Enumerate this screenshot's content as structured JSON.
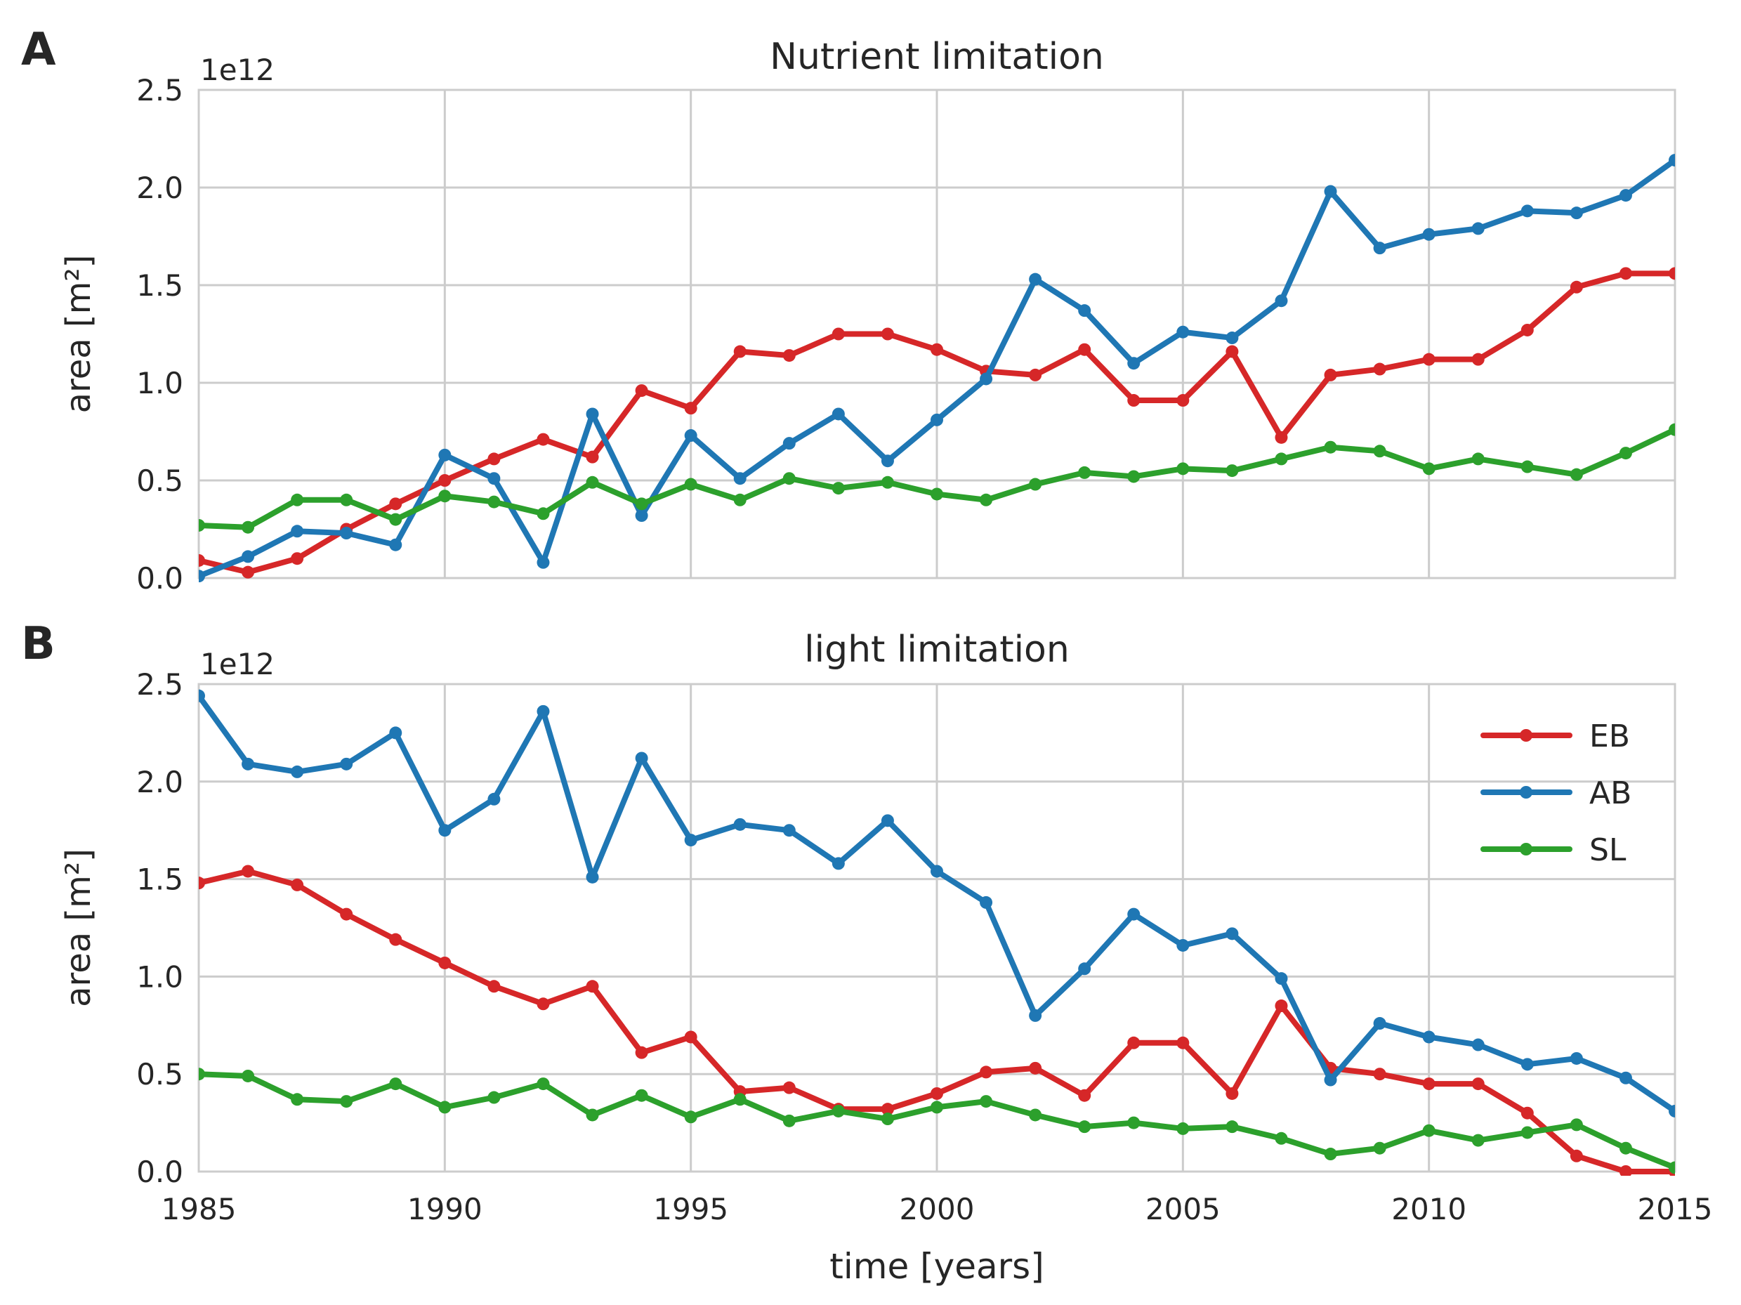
{
  "chart_data": [
    {
      "type": "line",
      "panel_label": "A",
      "title": "Nutrient limitation",
      "xlabel": "",
      "ylabel": "area [m²]",
      "offset_text": "1e12",
      "xlim": [
        1985,
        2015
      ],
      "ylim": [
        0.0,
        2.5
      ],
      "y_scale_factor": 1000000000000.0,
      "yticks": [
        "0.0",
        "0.5",
        "1.0",
        "1.5",
        "2.0",
        "2.5"
      ],
      "grid": true,
      "x": [
        1985,
        1986,
        1987,
        1988,
        1989,
        1990,
        1991,
        1992,
        1993,
        1994,
        1995,
        1996,
        1997,
        1998,
        1999,
        2000,
        2001,
        2002,
        2003,
        2004,
        2005,
        2006,
        2007,
        2008,
        2009,
        2010,
        2011,
        2012,
        2013,
        2014,
        2015
      ],
      "series": [
        {
          "name": "EB",
          "color": "#d62728",
          "values": [
            0.09,
            0.03,
            0.1,
            0.25,
            0.38,
            0.5,
            0.61,
            0.71,
            0.62,
            0.96,
            0.87,
            1.16,
            1.14,
            1.25,
            1.25,
            1.17,
            1.06,
            1.04,
            1.17,
            0.91,
            0.91,
            1.16,
            0.72,
            1.04,
            1.07,
            1.12,
            1.12,
            1.27,
            1.49,
            1.56,
            1.56
          ]
        },
        {
          "name": "AB",
          "color": "#1f77b4",
          "values": [
            0.01,
            0.11,
            0.24,
            0.23,
            0.17,
            0.63,
            0.51,
            0.08,
            0.84,
            0.32,
            0.73,
            0.51,
            0.69,
            0.84,
            0.6,
            0.81,
            1.02,
            1.53,
            1.37,
            1.1,
            1.26,
            1.23,
            1.42,
            1.98,
            1.69,
            1.76,
            1.79,
            1.88,
            1.87,
            1.96,
            2.14
          ]
        },
        {
          "name": "SL",
          "color": "#2ca02c",
          "values": [
            0.27,
            0.26,
            0.4,
            0.4,
            0.3,
            0.42,
            0.39,
            0.33,
            0.49,
            0.38,
            0.48,
            0.4,
            0.51,
            0.46,
            0.49,
            0.43,
            0.4,
            0.48,
            0.54,
            0.52,
            0.56,
            0.55,
            0.61,
            0.67,
            0.65,
            0.56,
            0.61,
            0.57,
            0.53,
            0.64,
            0.76
          ]
        }
      ]
    },
    {
      "type": "line",
      "panel_label": "B",
      "title": "light limitation",
      "xlabel": "time [years]",
      "ylabel": "area [m²]",
      "offset_text": "1e12",
      "xlim": [
        1985,
        2015
      ],
      "ylim": [
        0.0,
        2.5
      ],
      "y_scale_factor": 1000000000000.0,
      "xticks": [
        "1985",
        "1990",
        "1995",
        "2000",
        "2005",
        "2010",
        "2015"
      ],
      "yticks": [
        "0.0",
        "0.5",
        "1.0",
        "1.5",
        "2.0",
        "2.5"
      ],
      "grid": true,
      "legend": {
        "position": "upper-right",
        "entries": [
          "EB",
          "AB",
          "SL"
        ]
      },
      "x": [
        1985,
        1986,
        1987,
        1988,
        1989,
        1990,
        1991,
        1992,
        1993,
        1994,
        1995,
        1996,
        1997,
        1998,
        1999,
        2000,
        2001,
        2002,
        2003,
        2004,
        2005,
        2006,
        2007,
        2008,
        2009,
        2010,
        2011,
        2012,
        2013,
        2014,
        2015
      ],
      "series": [
        {
          "name": "EB",
          "color": "#d62728",
          "values": [
            1.48,
            1.54,
            1.47,
            1.32,
            1.19,
            1.07,
            0.95,
            0.86,
            0.95,
            0.61,
            0.69,
            0.41,
            0.43,
            0.32,
            0.32,
            0.4,
            0.51,
            0.53,
            0.39,
            0.66,
            0.66,
            0.4,
            0.85,
            0.53,
            0.5,
            0.45,
            0.45,
            0.3,
            0.08,
            0.0,
            0.0
          ]
        },
        {
          "name": "AB",
          "color": "#1f77b4",
          "values": [
            2.44,
            2.09,
            2.05,
            2.09,
            2.25,
            1.75,
            1.91,
            2.36,
            1.51,
            2.12,
            1.7,
            1.78,
            1.75,
            1.58,
            1.8,
            1.54,
            1.38,
            0.8,
            1.04,
            1.32,
            1.16,
            1.22,
            0.99,
            0.47,
            0.76,
            0.69,
            0.65,
            0.55,
            0.58,
            0.48,
            0.31
          ]
        },
        {
          "name": "SL",
          "color": "#2ca02c",
          "values": [
            0.5,
            0.49,
            0.37,
            0.36,
            0.45,
            0.33,
            0.38,
            0.45,
            0.29,
            0.39,
            0.28,
            0.37,
            0.26,
            0.31,
            0.27,
            0.33,
            0.36,
            0.29,
            0.23,
            0.25,
            0.22,
            0.23,
            0.17,
            0.09,
            0.12,
            0.21,
            0.16,
            0.2,
            0.24,
            0.12,
            0.02
          ]
        }
      ]
    }
  ]
}
